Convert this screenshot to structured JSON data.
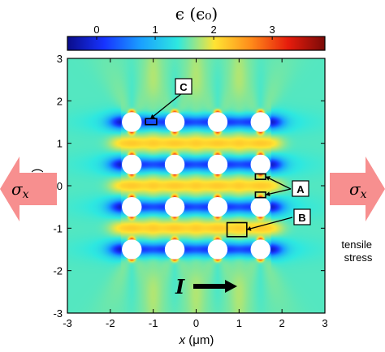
{
  "chart_data": {
    "type": "heatmap",
    "colorbar": {
      "title": "ϵ (ϵ₀)",
      "range": [
        -0.5,
        3.9
      ],
      "ticks": [
        "0",
        "1",
        "2",
        "3"
      ],
      "tick_values": [
        0,
        1,
        2,
        3
      ],
      "colormap": [
        "#0a0c8a",
        "#1733ff",
        "#1aa0ff",
        "#2ee8e0",
        "#ffe433",
        "#ff8a1a",
        "#e61c0c",
        "#7a0a08"
      ]
    },
    "xlabel_var": "x",
    "xlabel_unit": "(μm)",
    "ylabel_var": "y",
    "ylabel_unit": "(μm)",
    "xlim": [
      -3,
      3
    ],
    "ylim": [
      -3,
      3
    ],
    "xticks": [
      "-3",
      "-2",
      "-1",
      "0",
      "1",
      "2",
      "3"
    ],
    "yticks": [
      "-3",
      "-2",
      "-1",
      "0",
      "1",
      "2",
      "3"
    ],
    "xtick_values": [
      -3,
      -2,
      -1,
      0,
      1,
      2,
      3
    ],
    "ytick_values": [
      -3,
      -2,
      -1,
      0,
      1,
      2,
      3
    ],
    "background_value": 1.5,
    "holes": {
      "x": [
        -1.5,
        -0.5,
        0.5,
        1.5
      ],
      "y": [
        1.5,
        0.5,
        -0.5,
        -1.5
      ],
      "radius": 0.22,
      "fill": "#ffffff"
    },
    "annotations": [
      {
        "label": "C",
        "boxes": [
          {
            "x0": -1.18,
            "x1": -0.92,
            "y0": 1.44,
            "y1": 1.58
          }
        ]
      },
      {
        "label": "A",
        "boxes": [
          {
            "x0": 1.38,
            "x1": 1.62,
            "y0": 0.15,
            "y1": 0.28
          },
          {
            "x0": 1.38,
            "x1": 1.62,
            "y0": -0.28,
            "y1": -0.15
          }
        ]
      },
      {
        "label": "B",
        "boxes": [
          {
            "x0": 0.72,
            "x1": 1.18,
            "y0": -1.2,
            "y1": -0.87
          }
        ]
      }
    ],
    "current": {
      "label": "I",
      "direction": "+x"
    },
    "stress": {
      "symbol": "σ",
      "subscript": "x",
      "arrow_color": "#f78f8f",
      "note_line1": "tensile",
      "note_line2": "stress"
    }
  }
}
